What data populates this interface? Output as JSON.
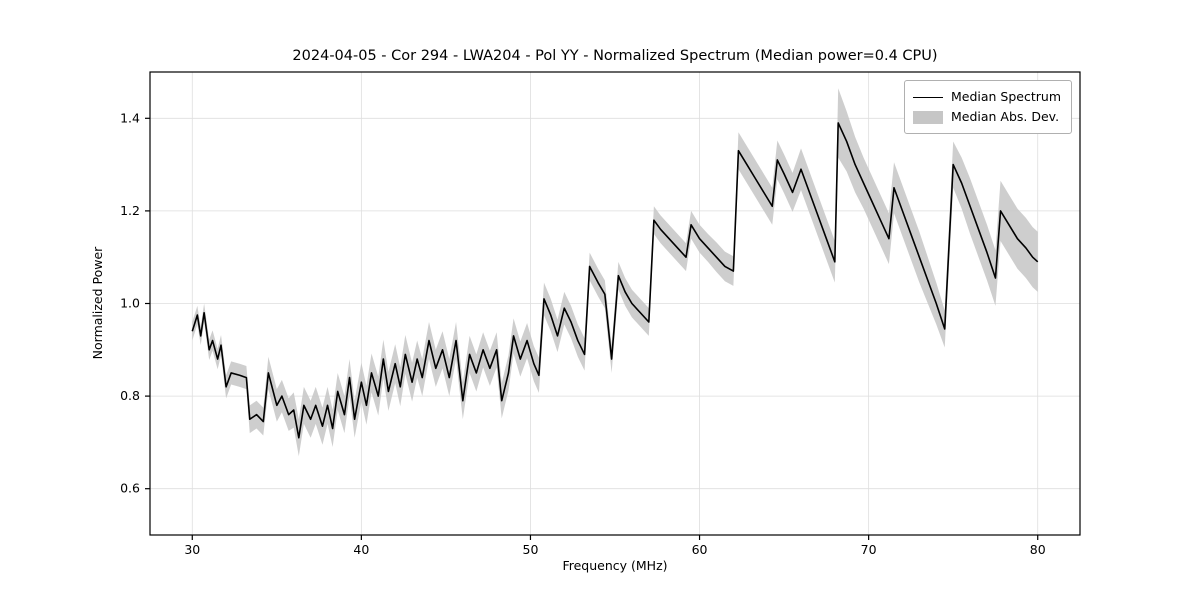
{
  "chart_data": {
    "type": "line",
    "title": "2024-04-05 - Cor 294 - LWA204 - Pol YY - Normalized Spectrum (Median power=0.4 CPU)",
    "xlabel": "Frequency (MHz)",
    "ylabel": "Normalized Power",
    "xlim": [
      27.5,
      82.5
    ],
    "ylim": [
      0.5,
      1.5
    ],
    "xticks": [
      30,
      40,
      50,
      60,
      70,
      80
    ],
    "yticks": [
      0.6,
      0.8,
      1.0,
      1.2,
      1.4
    ],
    "grid": true,
    "legend_position": "upper right",
    "legend_entries": [
      "Median Spectrum",
      "Median Abs. Dev."
    ],
    "colors": {
      "line": "#000000",
      "band": "#c6c6c6",
      "grid": "#dedede",
      "axes": "#000000",
      "background": "#ffffff"
    },
    "x": [
      30.0,
      30.3,
      30.5,
      30.7,
      31.0,
      31.2,
      31.5,
      31.7,
      32.0,
      32.3,
      32.8,
      33.2,
      33.4,
      33.8,
      34.2,
      34.5,
      35.0,
      35.3,
      35.7,
      36.0,
      36.3,
      36.6,
      37.0,
      37.3,
      37.7,
      38.0,
      38.3,
      38.6,
      39.0,
      39.3,
      39.6,
      40.0,
      40.3,
      40.6,
      41.0,
      41.3,
      41.6,
      42.0,
      42.3,
      42.6,
      43.0,
      43.3,
      43.6,
      44.0,
      44.4,
      44.8,
      45.2,
      45.6,
      46.0,
      46.4,
      46.8,
      47.2,
      47.6,
      48.0,
      48.3,
      48.7,
      49.0,
      49.4,
      49.8,
      50.2,
      50.5,
      50.8,
      51.2,
      51.6,
      52.0,
      52.4,
      52.8,
      53.2,
      53.5,
      54.0,
      54.4,
      54.8,
      55.2,
      55.6,
      56.0,
      56.5,
      57.0,
      57.3,
      57.7,
      58.2,
      58.7,
      59.2,
      59.5,
      60.0,
      60.5,
      61.0,
      61.5,
      62.0,
      62.3,
      62.8,
      63.3,
      63.8,
      64.3,
      64.6,
      65.0,
      65.5,
      66.0,
      66.5,
      67.0,
      67.5,
      68.0,
      68.2,
      68.7,
      69.2,
      69.7,
      70.2,
      70.7,
      71.2,
      71.5,
      72.0,
      72.5,
      73.0,
      73.5,
      74.0,
      74.5,
      75.0,
      75.5,
      76.0,
      76.5,
      77.0,
      77.5,
      77.8,
      78.3,
      78.8,
      79.3,
      79.7,
      80.0
    ],
    "series": [
      {
        "name": "Median Spectrum",
        "values": [
          0.94,
          0.975,
          0.93,
          0.98,
          0.9,
          0.92,
          0.88,
          0.91,
          0.82,
          0.85,
          0.845,
          0.84,
          0.75,
          0.76,
          0.745,
          0.85,
          0.78,
          0.8,
          0.76,
          0.77,
          0.71,
          0.78,
          0.75,
          0.78,
          0.735,
          0.78,
          0.73,
          0.81,
          0.76,
          0.84,
          0.75,
          0.83,
          0.78,
          0.85,
          0.8,
          0.88,
          0.81,
          0.87,
          0.82,
          0.89,
          0.83,
          0.88,
          0.84,
          0.92,
          0.86,
          0.9,
          0.84,
          0.92,
          0.79,
          0.89,
          0.85,
          0.9,
          0.86,
          0.9,
          0.79,
          0.85,
          0.93,
          0.88,
          0.92,
          0.87,
          0.845,
          1.01,
          0.975,
          0.93,
          0.99,
          0.96,
          0.92,
          0.89,
          1.08,
          1.045,
          1.02,
          0.88,
          1.06,
          1.025,
          1.0,
          0.98,
          0.96,
          1.18,
          1.16,
          1.14,
          1.12,
          1.1,
          1.17,
          1.14,
          1.12,
          1.1,
          1.08,
          1.07,
          1.33,
          1.3,
          1.27,
          1.24,
          1.21,
          1.31,
          1.28,
          1.24,
          1.29,
          1.24,
          1.19,
          1.14,
          1.09,
          1.39,
          1.35,
          1.3,
          1.26,
          1.22,
          1.18,
          1.14,
          1.25,
          1.2,
          1.15,
          1.1,
          1.05,
          1.0,
          0.945,
          1.3,
          1.26,
          1.21,
          1.16,
          1.11,
          1.055,
          1.2,
          1.17,
          1.14,
          1.12,
          1.1,
          1.09
        ]
      },
      {
        "name": "Median Abs. Dev.",
        "deviation": [
          0.02,
          0.02,
          0.02,
          0.02,
          0.022,
          0.022,
          0.022,
          0.022,
          0.025,
          0.025,
          0.025,
          0.025,
          0.03,
          0.03,
          0.03,
          0.035,
          0.035,
          0.035,
          0.035,
          0.038,
          0.04,
          0.04,
          0.04,
          0.04,
          0.04,
          0.04,
          0.04,
          0.04,
          0.04,
          0.04,
          0.04,
          0.042,
          0.042,
          0.042,
          0.042,
          0.042,
          0.042,
          0.042,
          0.042,
          0.042,
          0.042,
          0.04,
          0.04,
          0.04,
          0.04,
          0.04,
          0.04,
          0.04,
          0.04,
          0.04,
          0.04,
          0.038,
          0.038,
          0.038,
          0.038,
          0.038,
          0.038,
          0.038,
          0.038,
          0.038,
          0.038,
          0.035,
          0.035,
          0.035,
          0.035,
          0.035,
          0.035,
          0.035,
          0.03,
          0.03,
          0.03,
          0.03,
          0.03,
          0.03,
          0.03,
          0.03,
          0.03,
          0.03,
          0.03,
          0.03,
          0.03,
          0.03,
          0.03,
          0.03,
          0.03,
          0.032,
          0.032,
          0.032,
          0.04,
          0.04,
          0.04,
          0.04,
          0.04,
          0.042,
          0.042,
          0.042,
          0.045,
          0.045,
          0.045,
          0.045,
          0.045,
          0.075,
          0.065,
          0.06,
          0.055,
          0.055,
          0.055,
          0.055,
          0.055,
          0.055,
          0.055,
          0.055,
          0.05,
          0.045,
          0.04,
          0.05,
          0.055,
          0.06,
          0.06,
          0.06,
          0.06,
          0.065,
          0.065,
          0.065,
          0.065,
          0.065,
          0.065
        ]
      }
    ]
  }
}
